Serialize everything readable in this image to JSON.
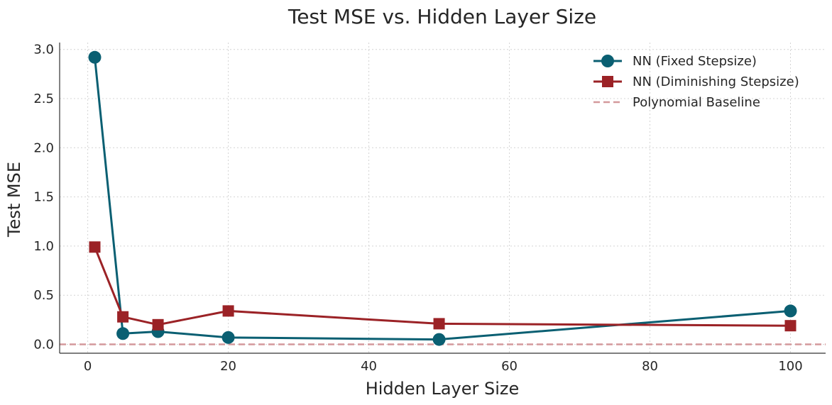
{
  "chart_data": {
    "type": "line",
    "title": "Test MSE vs. Hidden Layer Size",
    "xlabel": "Hidden Layer Size",
    "ylabel": "Test MSE",
    "xlim": [
      -4,
      105
    ],
    "ylim": [
      -0.09,
      3.07
    ],
    "xticks": [
      0,
      20,
      40,
      60,
      80,
      100
    ],
    "yticks": [
      0.0,
      0.5,
      1.0,
      1.5,
      2.0,
      2.5,
      3.0
    ],
    "xtick_labels": [
      "0",
      "20",
      "40",
      "60",
      "80",
      "100"
    ],
    "ytick_labels": [
      "0.0",
      "0.5",
      "1.0",
      "1.5",
      "2.0",
      "2.5",
      "3.0"
    ],
    "grid": true,
    "legend_position": "top-right",
    "x": [
      1,
      5,
      10,
      20,
      50,
      100
    ],
    "series": [
      {
        "name": "NN (Fixed Stepsize)",
        "marker": "circle",
        "color": "#0a5f72",
        "values": [
          2.92,
          0.11,
          0.13,
          0.07,
          0.05,
          0.34
        ]
      },
      {
        "name": "NN (Diminishing Stepsize)",
        "marker": "square",
        "color": "#9b2226",
        "values": [
          0.99,
          0.28,
          0.2,
          0.34,
          0.21,
          0.19
        ]
      }
    ],
    "baseline": {
      "name": "Polynomial Baseline",
      "value": 0.0,
      "color": "#d4999c",
      "style": "dashed"
    }
  }
}
